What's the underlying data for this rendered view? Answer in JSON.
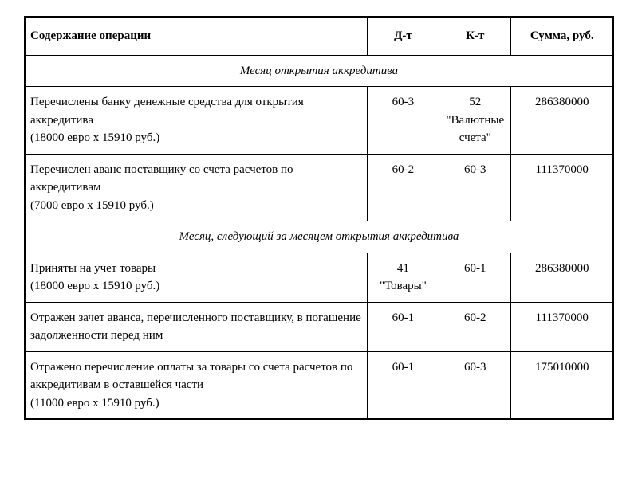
{
  "table": {
    "headers": {
      "description": "Содержание операции",
      "debit": "Д-т",
      "credit": "К-т",
      "amount": "Сумма, руб."
    },
    "section1": {
      "title": "Месяц открытия аккредитива",
      "rows": [
        {
          "desc_line1": "Перечислены банку денежные средства для открытия аккредитива",
          "desc_line2": "(18000 евро x 15910 руб.)",
          "debit": "60-3",
          "credit_line1": "52",
          "credit_line2": "\"Валютные счета\"",
          "amount": "286380000"
        },
        {
          "desc_line1": "Перечислен аванс поставщику со счета расчетов по аккредитивам",
          "desc_line2": "(7000 евро x 15910 руб.)",
          "debit": "60-2",
          "credit": "60-3",
          "amount": "111370000"
        }
      ]
    },
    "section2": {
      "title": "Месяц, следующий за месяцем открытия аккредитива",
      "rows": [
        {
          "desc_line1": "Приняты на учет товары",
          "desc_line2": "(18000 евро x 15910 руб.)",
          "debit_line1": "41",
          "debit_line2": "\"Товары\"",
          "credit": "60-1",
          "amount": "286380000"
        },
        {
          "desc_line1": "Отражен зачет аванса, перечисленного поставщику, в погашение задолженности перед ним",
          "debit": "60-1",
          "credit": "60-2",
          "amount": "111370000"
        },
        {
          "desc_line1": "Отражено перечисление оплаты за товары со счета расчетов по аккредитивам в оставшейся части",
          "desc_line2": "(11000 евро x 15910 руб.)",
          "debit": "60-1",
          "credit": "60-3",
          "amount": "175010000"
        }
      ]
    }
  }
}
